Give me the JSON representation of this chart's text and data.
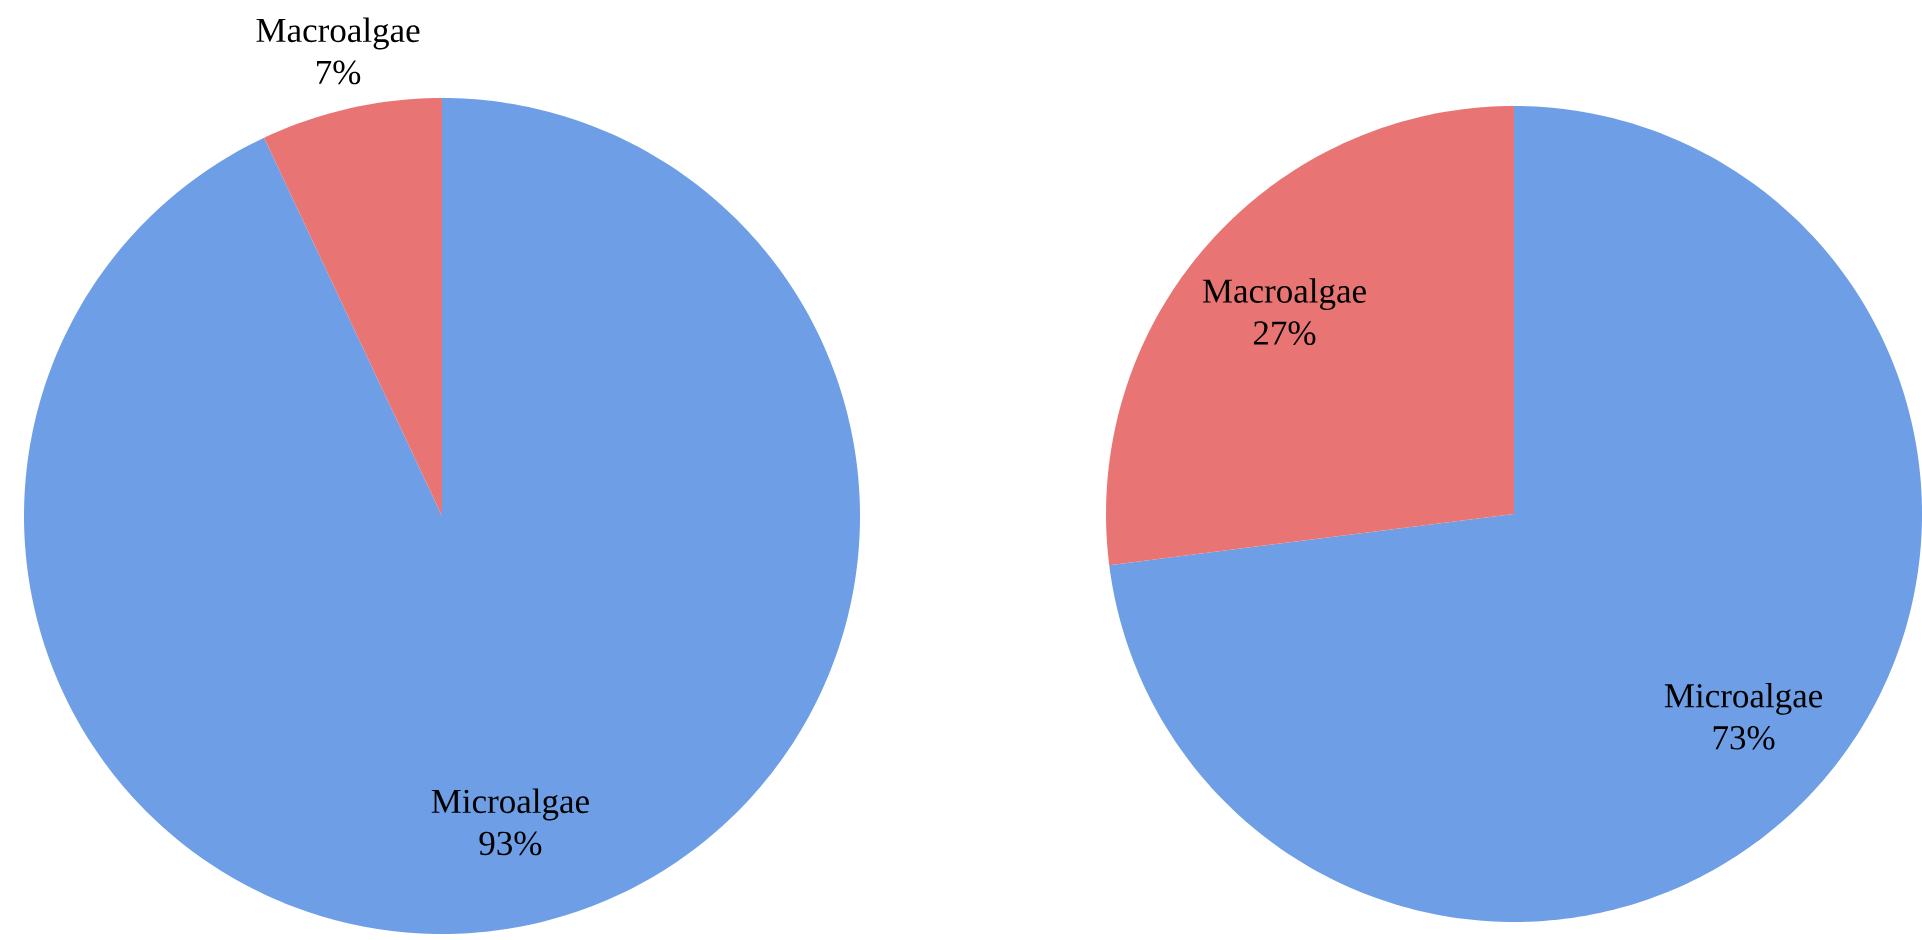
{
  "chart_data": [
    {
      "type": "pie",
      "categories": [
        "Microalgae",
        "Macroalgae"
      ],
      "values": [
        93,
        7
      ],
      "colors": [
        "#6e9fe6",
        "#e87474"
      ],
      "value_labels": [
        "93%",
        "7%"
      ]
    },
    {
      "type": "pie",
      "categories": [
        "Microalgae",
        "Macroalgae"
      ],
      "values": [
        73,
        27
      ],
      "colors": [
        "#6e9fe6",
        "#e87474"
      ],
      "value_labels": [
        "73%",
        "27%"
      ]
    }
  ]
}
